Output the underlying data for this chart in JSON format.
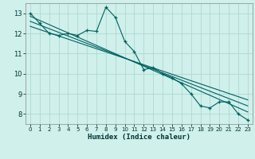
{
  "title": "",
  "xlabel": "Humidex (Indice chaleur)",
  "bg_color": "#cff0eb",
  "grid_color": "#b0d8d2",
  "line_color": "#006060",
  "xlim": [
    -0.5,
    23.5
  ],
  "ylim": [
    7.5,
    13.5
  ],
  "xticks": [
    0,
    1,
    2,
    3,
    4,
    5,
    6,
    7,
    8,
    9,
    10,
    11,
    12,
    13,
    14,
    15,
    16,
    17,
    18,
    19,
    20,
    21,
    22,
    23
  ],
  "yticks": [
    8,
    9,
    10,
    11,
    12,
    13
  ],
  "series1_x": [
    0,
    1,
    2,
    3,
    4,
    5,
    6,
    7,
    8,
    9,
    10,
    11,
    12,
    13,
    14,
    15,
    16,
    17,
    18,
    19,
    20,
    21,
    22,
    23
  ],
  "series1_y": [
    13.0,
    12.5,
    12.0,
    11.9,
    12.0,
    11.9,
    12.15,
    12.1,
    13.3,
    12.8,
    11.6,
    11.1,
    10.2,
    10.3,
    10.0,
    9.8,
    9.5,
    9.0,
    8.4,
    8.3,
    8.6,
    8.6,
    8.0,
    7.7
  ],
  "series2_x": [
    0,
    23
  ],
  "series2_y": [
    12.85,
    8.1
  ],
  "series3_x": [
    0,
    23
  ],
  "series3_y": [
    12.6,
    8.4
  ],
  "series4_x": [
    0,
    23
  ],
  "series4_y": [
    12.35,
    8.7
  ]
}
